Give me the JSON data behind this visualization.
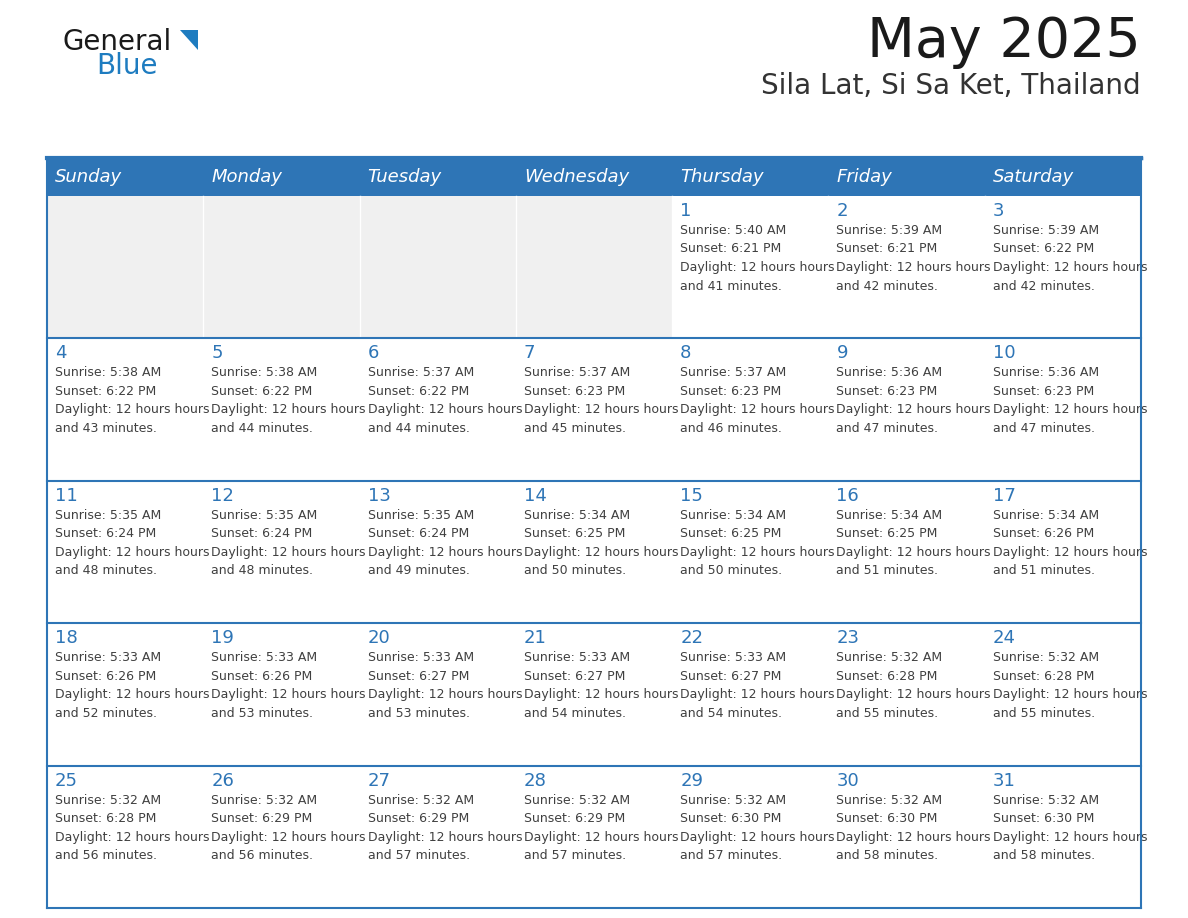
{
  "title": "May 2025",
  "subtitle": "Sila Lat, Si Sa Ket, Thailand",
  "days_of_week": [
    "Sunday",
    "Monday",
    "Tuesday",
    "Wednesday",
    "Thursday",
    "Friday",
    "Saturday"
  ],
  "header_bg": "#2E75B6",
  "header_text": "#FFFFFF",
  "cell_bg_light": "#FFFFFF",
  "cell_bg_gray": "#F0F0F0",
  "day_number_color": "#2E75B6",
  "text_color": "#404040",
  "border_color": "#2E75B6",
  "row_sep_color": "#2E75B6",
  "title_color": "#1a1a1a",
  "subtitle_color": "#333333",
  "logo_color1": "#1a1a1a",
  "logo_color2": "#1E7CC0",
  "calendar_data": [
    [
      {
        "day": "",
        "sunrise": "",
        "sunset": "",
        "daylight": ""
      },
      {
        "day": "",
        "sunrise": "",
        "sunset": "",
        "daylight": ""
      },
      {
        "day": "",
        "sunrise": "",
        "sunset": "",
        "daylight": ""
      },
      {
        "day": "",
        "sunrise": "",
        "sunset": "",
        "daylight": ""
      },
      {
        "day": "1",
        "sunrise": "5:40 AM",
        "sunset": "6:21 PM",
        "daylight": "12 hours and 41 minutes."
      },
      {
        "day": "2",
        "sunrise": "5:39 AM",
        "sunset": "6:21 PM",
        "daylight": "12 hours and 42 minutes."
      },
      {
        "day": "3",
        "sunrise": "5:39 AM",
        "sunset": "6:22 PM",
        "daylight": "12 hours and 42 minutes."
      }
    ],
    [
      {
        "day": "4",
        "sunrise": "5:38 AM",
        "sunset": "6:22 PM",
        "daylight": "12 hours and 43 minutes."
      },
      {
        "day": "5",
        "sunrise": "5:38 AM",
        "sunset": "6:22 PM",
        "daylight": "12 hours and 44 minutes."
      },
      {
        "day": "6",
        "sunrise": "5:37 AM",
        "sunset": "6:22 PM",
        "daylight": "12 hours and 44 minutes."
      },
      {
        "day": "7",
        "sunrise": "5:37 AM",
        "sunset": "6:23 PM",
        "daylight": "12 hours and 45 minutes."
      },
      {
        "day": "8",
        "sunrise": "5:37 AM",
        "sunset": "6:23 PM",
        "daylight": "12 hours and 46 minutes."
      },
      {
        "day": "9",
        "sunrise": "5:36 AM",
        "sunset": "6:23 PM",
        "daylight": "12 hours and 47 minutes."
      },
      {
        "day": "10",
        "sunrise": "5:36 AM",
        "sunset": "6:23 PM",
        "daylight": "12 hours and 47 minutes."
      }
    ],
    [
      {
        "day": "11",
        "sunrise": "5:35 AM",
        "sunset": "6:24 PM",
        "daylight": "12 hours and 48 minutes."
      },
      {
        "day": "12",
        "sunrise": "5:35 AM",
        "sunset": "6:24 PM",
        "daylight": "12 hours and 48 minutes."
      },
      {
        "day": "13",
        "sunrise": "5:35 AM",
        "sunset": "6:24 PM",
        "daylight": "12 hours and 49 minutes."
      },
      {
        "day": "14",
        "sunrise": "5:34 AM",
        "sunset": "6:25 PM",
        "daylight": "12 hours and 50 minutes."
      },
      {
        "day": "15",
        "sunrise": "5:34 AM",
        "sunset": "6:25 PM",
        "daylight": "12 hours and 50 minutes."
      },
      {
        "day": "16",
        "sunrise": "5:34 AM",
        "sunset": "6:25 PM",
        "daylight": "12 hours and 51 minutes."
      },
      {
        "day": "17",
        "sunrise": "5:34 AM",
        "sunset": "6:26 PM",
        "daylight": "12 hours and 51 minutes."
      }
    ],
    [
      {
        "day": "18",
        "sunrise": "5:33 AM",
        "sunset": "6:26 PM",
        "daylight": "12 hours and 52 minutes."
      },
      {
        "day": "19",
        "sunrise": "5:33 AM",
        "sunset": "6:26 PM",
        "daylight": "12 hours and 53 minutes."
      },
      {
        "day": "20",
        "sunrise": "5:33 AM",
        "sunset": "6:27 PM",
        "daylight": "12 hours and 53 minutes."
      },
      {
        "day": "21",
        "sunrise": "5:33 AM",
        "sunset": "6:27 PM",
        "daylight": "12 hours and 54 minutes."
      },
      {
        "day": "22",
        "sunrise": "5:33 AM",
        "sunset": "6:27 PM",
        "daylight": "12 hours and 54 minutes."
      },
      {
        "day": "23",
        "sunrise": "5:32 AM",
        "sunset": "6:28 PM",
        "daylight": "12 hours and 55 minutes."
      },
      {
        "day": "24",
        "sunrise": "5:32 AM",
        "sunset": "6:28 PM",
        "daylight": "12 hours and 55 minutes."
      }
    ],
    [
      {
        "day": "25",
        "sunrise": "5:32 AM",
        "sunset": "6:28 PM",
        "daylight": "12 hours and 56 minutes."
      },
      {
        "day": "26",
        "sunrise": "5:32 AM",
        "sunset": "6:29 PM",
        "daylight": "12 hours and 56 minutes."
      },
      {
        "day": "27",
        "sunrise": "5:32 AM",
        "sunset": "6:29 PM",
        "daylight": "12 hours and 57 minutes."
      },
      {
        "day": "28",
        "sunrise": "5:32 AM",
        "sunset": "6:29 PM",
        "daylight": "12 hours and 57 minutes."
      },
      {
        "day": "29",
        "sunrise": "5:32 AM",
        "sunset": "6:30 PM",
        "daylight": "12 hours and 57 minutes."
      },
      {
        "day": "30",
        "sunrise": "5:32 AM",
        "sunset": "6:30 PM",
        "daylight": "12 hours and 58 minutes."
      },
      {
        "day": "31",
        "sunrise": "5:32 AM",
        "sunset": "6:30 PM",
        "daylight": "12 hours and 58 minutes."
      }
    ]
  ]
}
